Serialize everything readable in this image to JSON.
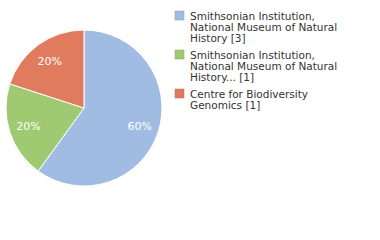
{
  "chart_data": {
    "type": "pie",
    "categories": [
      "Smithsonian Institution, National Museum of Natural History [3]",
      "Smithsonian Institution, National Museum of Natural History... [1]",
      "Centre for Biodiversity Genomics [1]"
    ],
    "values": [
      60,
      20,
      20
    ],
    "value_labels": [
      "60%",
      "20%",
      "20%"
    ],
    "colors": [
      "#a0bce2",
      "#9fca72",
      "#e07b5e"
    ],
    "data_labels": true,
    "legend": "right"
  }
}
